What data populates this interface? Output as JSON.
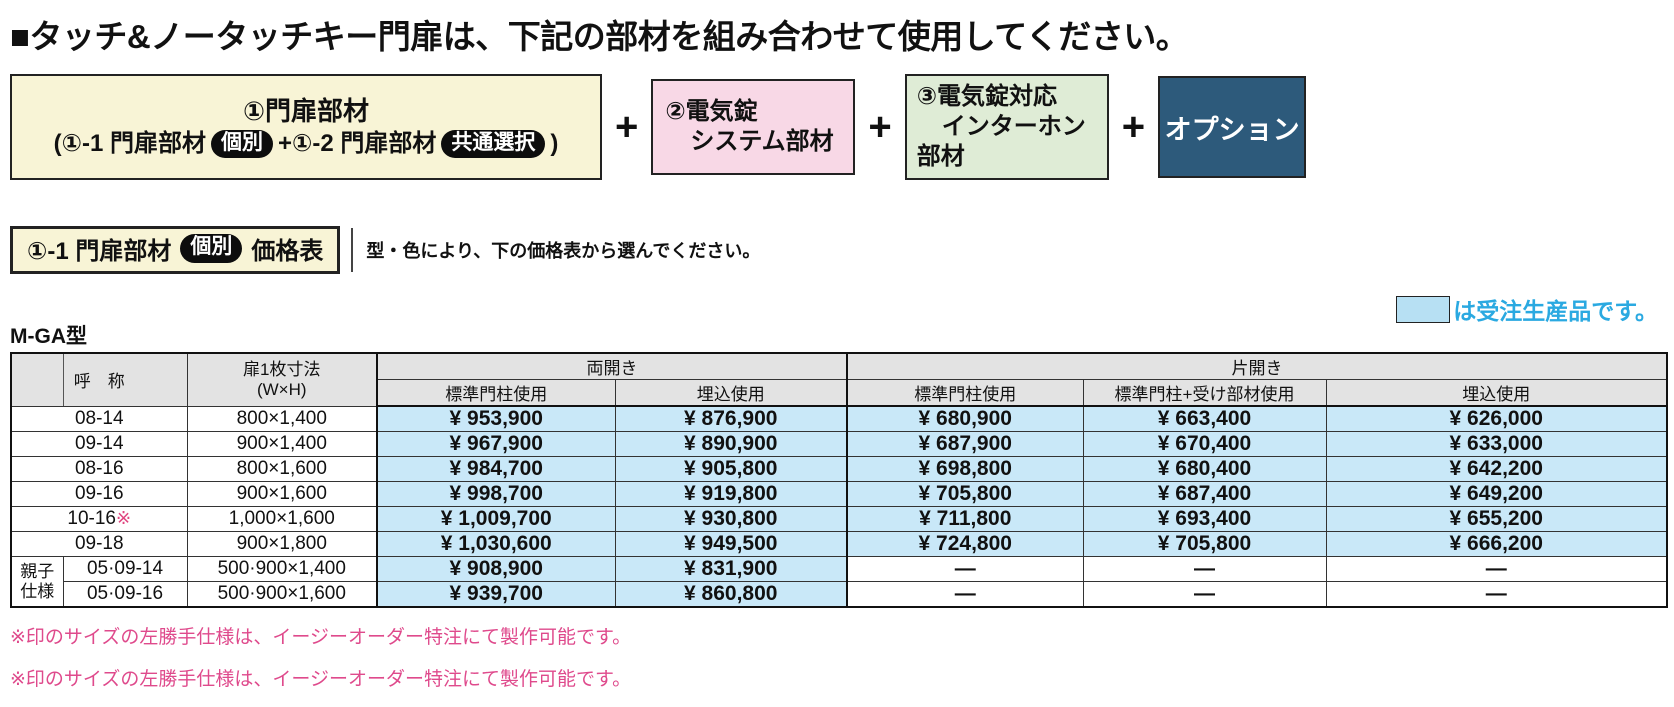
{
  "page": {
    "title": "■タッチ&ノータッチキー門扉は、下記の部材を組み合わせて使用してください。"
  },
  "flow": {
    "box1": {
      "line1": "①門扉部材",
      "line2_pre": "(①-1 門扉部材",
      "pill1": "個別",
      "line2_mid": "+①-2 門扉部材",
      "pill2": "共通選択",
      "line2_post": ")"
    },
    "plus": "+",
    "box2": {
      "line1": "②電気錠",
      "line2": "システム部材"
    },
    "box3": {
      "line1": "③電気錠対応",
      "line2": "インターホン",
      "line3": "部材"
    },
    "box4": {
      "label": "オプション"
    }
  },
  "section": {
    "label_prefix": "①-1 門扉部材",
    "label_pill": "個別",
    "label_suffix": "価格表",
    "description": "型・色により、下の価格表から選んでください。"
  },
  "model": "M-GA型",
  "legend": {
    "text": "は受注生産品です。"
  },
  "colors": {
    "made_to_order_cell": "#c9e8f8",
    "legend_blue_text": "#2aa9e1",
    "footnote_pink": "#df4a8c",
    "box_gate_cream": "#f8f4d6",
    "box_lock_pink": "#f8d8e6",
    "box_interphone_green": "#dfecd6",
    "box_option_blue": "#2d5a7b",
    "table_header_gray": "#e3e3e3"
  },
  "table": {
    "headers": {
      "name": "呼　称",
      "size_line1": "扉1枚寸法",
      "size_line2": "(W×H)",
      "double": "両開き",
      "single": "片開き",
      "double_sub": [
        "標準門柱使用",
        "埋込使用"
      ],
      "single_sub": [
        "標準門柱使用",
        "標準門柱+受け部材使用",
        "埋込使用"
      ]
    },
    "rows": [
      {
        "name": "08-14",
        "note": "",
        "size": "800×1,400",
        "prices": [
          "¥ 953,900",
          "¥ 876,900",
          "¥ 680,900",
          "¥ 663,400",
          "¥ 626,000"
        ]
      },
      {
        "name": "09-14",
        "note": "",
        "size": "900×1,400",
        "prices": [
          "¥ 967,900",
          "¥ 890,900",
          "¥ 687,900",
          "¥ 670,400",
          "¥ 633,000"
        ]
      },
      {
        "name": "08-16",
        "note": "",
        "size": "800×1,600",
        "prices": [
          "¥ 984,700",
          "¥ 905,800",
          "¥ 698,800",
          "¥ 680,400",
          "¥ 642,200"
        ]
      },
      {
        "name": "09-16",
        "note": "",
        "size": "900×1,600",
        "prices": [
          "¥ 998,700",
          "¥ 919,800",
          "¥ 705,800",
          "¥ 687,400",
          "¥ 649,200"
        ]
      },
      {
        "name": "10-16",
        "note": "※",
        "size": "1,000×1,600",
        "prices": [
          "¥ 1,009,700",
          "¥ 930,800",
          "¥ 711,800",
          "¥ 693,400",
          "¥ 655,200"
        ]
      },
      {
        "name": "09-18",
        "note": "",
        "size": "900×1,800",
        "prices": [
          "¥ 1,030,600",
          "¥ 949,500",
          "¥ 724,800",
          "¥ 705,800",
          "¥ 666,200"
        ]
      },
      {
        "name": "05·09-14",
        "note": "",
        "size": "500·900×1,400",
        "in_group": true,
        "group_lines": [
          "親子",
          "仕様"
        ],
        "prices": [
          "¥ 908,900",
          "¥ 831,900",
          "—",
          "—",
          "—"
        ]
      },
      {
        "name": "05·09-16",
        "note": "",
        "size": "500·900×1,600",
        "in_group": true,
        "prices": [
          "¥ 939,700",
          "¥ 860,800",
          "—",
          "—",
          "—"
        ]
      }
    ]
  },
  "footnotes": [
    "※印のサイズの左勝手仕様は、イージーオーダー特注にて製作可能です。",
    "※印のサイズの左勝手仕様は、イージーオーダー特注にて製作可能です。"
  ]
}
